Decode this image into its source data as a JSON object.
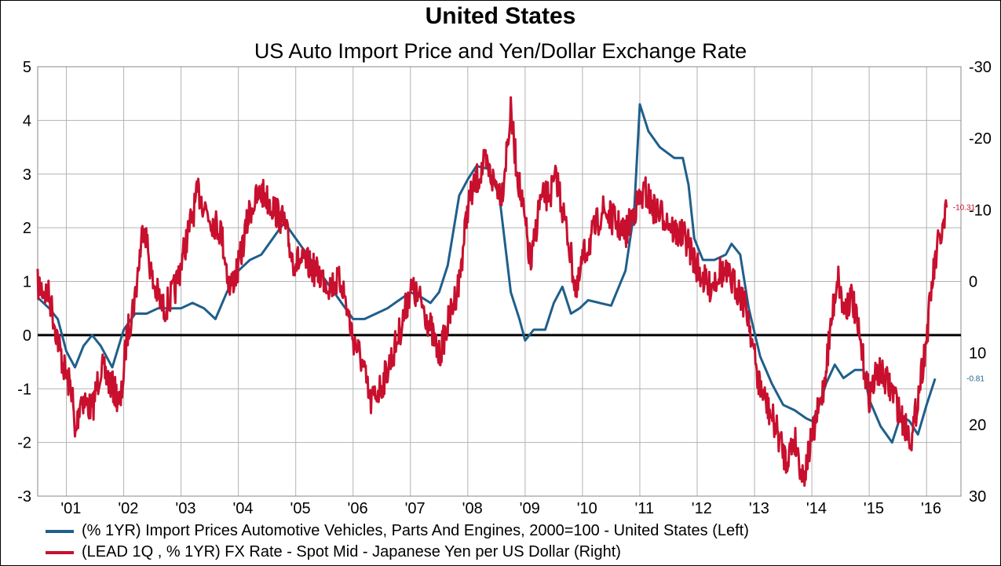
{
  "title": "United States",
  "subtitle": "US Auto Import Price and Yen/Dollar Exchange Rate",
  "chart_data": {
    "type": "line",
    "title": "United States",
    "subtitle": "US Auto Import Price and Yen/Dollar Exchange Rate",
    "x_tick_labels": [
      "'01",
      "'02",
      "'03",
      "'04",
      "'05",
      "'06",
      "'07",
      "'08",
      "'09",
      "'10",
      "'11",
      "'12",
      "'13",
      "'14",
      "'15",
      "'16"
    ],
    "xlim": [
      2000.5,
      2016.6
    ],
    "y_left": {
      "lim": [
        -3,
        5
      ],
      "ticks": [
        -3,
        -2,
        -1,
        0,
        1,
        2,
        3,
        4,
        5
      ]
    },
    "y_right": {
      "lim": [
        30,
        -30
      ],
      "inverted": true,
      "ticks": [
        30,
        20,
        10,
        0,
        -10,
        -20,
        -30
      ]
    },
    "grid": true,
    "zero_line": true,
    "legend_position": "bottom",
    "series": [
      {
        "name": "(% 1YR) Import Prices Automotive Vehicles, Parts And Engines, 2000=100 - United States  (Left)",
        "axis": "left",
        "color": "#1f5f8b",
        "end_label": "-0.81",
        "points": [
          [
            2000.5,
            0.7
          ],
          [
            2000.7,
            0.5
          ],
          [
            2000.85,
            0.3
          ],
          [
            2001.0,
            -0.3
          ],
          [
            2001.15,
            -0.6
          ],
          [
            2001.3,
            -0.2
          ],
          [
            2001.45,
            0.0
          ],
          [
            2001.6,
            -0.2
          ],
          [
            2001.8,
            -0.6
          ],
          [
            2002.0,
            0.1
          ],
          [
            2002.2,
            0.4
          ],
          [
            2002.4,
            0.4
          ],
          [
            2002.6,
            0.5
          ],
          [
            2002.8,
            0.5
          ],
          [
            2003.0,
            0.5
          ],
          [
            2003.2,
            0.6
          ],
          [
            2003.4,
            0.5
          ],
          [
            2003.6,
            0.3
          ],
          [
            2003.8,
            0.8
          ],
          [
            2004.0,
            1.2
          ],
          [
            2004.2,
            1.4
          ],
          [
            2004.4,
            1.5
          ],
          [
            2004.6,
            1.8
          ],
          [
            2004.8,
            2.1
          ],
          [
            2005.0,
            1.8
          ],
          [
            2005.2,
            1.5
          ],
          [
            2005.4,
            1.2
          ],
          [
            2005.6,
            0.9
          ],
          [
            2005.8,
            0.6
          ],
          [
            2006.0,
            0.3
          ],
          [
            2006.2,
            0.3
          ],
          [
            2006.4,
            0.4
          ],
          [
            2006.6,
            0.5
          ],
          [
            2006.8,
            0.65
          ],
          [
            2007.0,
            0.8
          ],
          [
            2007.2,
            0.7
          ],
          [
            2007.35,
            0.6
          ],
          [
            2007.5,
            0.8
          ],
          [
            2007.65,
            1.3
          ],
          [
            2007.85,
            2.6
          ],
          [
            2008.0,
            2.9
          ],
          [
            2008.15,
            3.15
          ],
          [
            2008.35,
            3.1
          ],
          [
            2008.55,
            2.6
          ],
          [
            2008.75,
            0.8
          ],
          [
            2008.9,
            0.3
          ],
          [
            2009.0,
            -0.1
          ],
          [
            2009.15,
            0.1
          ],
          [
            2009.35,
            0.1
          ],
          [
            2009.5,
            0.6
          ],
          [
            2009.65,
            0.9
          ],
          [
            2009.8,
            0.4
          ],
          [
            2009.95,
            0.5
          ],
          [
            2010.1,
            0.65
          ],
          [
            2010.3,
            0.6
          ],
          [
            2010.5,
            0.55
          ],
          [
            2010.75,
            1.2
          ],
          [
            2010.9,
            2.3
          ],
          [
            2011.0,
            4.3
          ],
          [
            2011.15,
            3.8
          ],
          [
            2011.35,
            3.5
          ],
          [
            2011.6,
            3.3
          ],
          [
            2011.75,
            3.3
          ],
          [
            2011.85,
            2.8
          ],
          [
            2011.95,
            1.8
          ],
          [
            2012.1,
            1.4
          ],
          [
            2012.3,
            1.4
          ],
          [
            2012.5,
            1.5
          ],
          [
            2012.6,
            1.7
          ],
          [
            2012.75,
            1.5
          ],
          [
            2012.9,
            0.5
          ],
          [
            2013.1,
            -0.4
          ],
          [
            2013.3,
            -0.9
          ],
          [
            2013.5,
            -1.3
          ],
          [
            2013.7,
            -1.4
          ],
          [
            2013.9,
            -1.55
          ],
          [
            2014.0,
            -1.6
          ],
          [
            2014.1,
            -1.4
          ],
          [
            2014.25,
            -0.9
          ],
          [
            2014.4,
            -0.55
          ],
          [
            2014.55,
            -0.8
          ],
          [
            2014.75,
            -0.65
          ],
          [
            2014.9,
            -0.65
          ],
          [
            2015.0,
            -1.2
          ],
          [
            2015.2,
            -1.7
          ],
          [
            2015.4,
            -2.0
          ],
          [
            2015.55,
            -1.5
          ],
          [
            2015.7,
            -1.6
          ],
          [
            2015.85,
            -1.85
          ],
          [
            2016.0,
            -1.3
          ],
          [
            2016.15,
            -0.81
          ]
        ]
      },
      {
        "name": "(LEAD 1Q , % 1YR) FX Rate - Spot Mid - Japanese Yen per US Dollar  (Right)",
        "axis": "right",
        "color": "#c8102e",
        "end_label": "-10.31",
        "points": [
          [
            2000.5,
            0.5
          ],
          [
            2000.7,
            2.0
          ],
          [
            2000.9,
            10.0
          ],
          [
            2001.0,
            13.5
          ],
          [
            2001.1,
            15.0
          ],
          [
            2001.15,
            22.0
          ],
          [
            2001.25,
            16.0
          ],
          [
            2001.45,
            18.0
          ],
          [
            2001.6,
            12.0
          ],
          [
            2001.75,
            14.0
          ],
          [
            2001.95,
            17.0
          ],
          [
            2002.05,
            8.0
          ],
          [
            2002.2,
            2.0
          ],
          [
            2002.35,
            -8.5
          ],
          [
            2002.5,
            0.0
          ],
          [
            2002.7,
            4.0
          ],
          [
            2002.9,
            1.0
          ],
          [
            2003.1,
            -6.0
          ],
          [
            2003.3,
            -12.5
          ],
          [
            2003.5,
            -9.0
          ],
          [
            2003.7,
            -7.0
          ],
          [
            2003.85,
            1.0
          ],
          [
            2004.0,
            -2.0
          ],
          [
            2004.2,
            -10.0
          ],
          [
            2004.4,
            -12.5
          ],
          [
            2004.6,
            -10.5
          ],
          [
            2004.8,
            -8.0
          ],
          [
            2004.95,
            -3.0
          ],
          [
            2005.2,
            -2.5
          ],
          [
            2005.4,
            -1.0
          ],
          [
            2005.6,
            0.5
          ],
          [
            2005.8,
            0.0
          ],
          [
            2006.0,
            8.0
          ],
          [
            2006.15,
            11.0
          ],
          [
            2006.3,
            17.0
          ],
          [
            2006.5,
            14.5
          ],
          [
            2006.7,
            10.0
          ],
          [
            2006.85,
            6.0
          ],
          [
            2007.0,
            1.0
          ],
          [
            2007.2,
            3.0
          ],
          [
            2007.35,
            6.5
          ],
          [
            2007.5,
            10.5
          ],
          [
            2007.65,
            6.0
          ],
          [
            2007.85,
            0.0
          ],
          [
            2008.0,
            -10.5
          ],
          [
            2008.15,
            -14.0
          ],
          [
            2008.3,
            -16.5
          ],
          [
            2008.45,
            -14.0
          ],
          [
            2008.6,
            -12.5
          ],
          [
            2008.75,
            -23.5
          ],
          [
            2008.85,
            -16.0
          ],
          [
            2009.0,
            -8.0
          ],
          [
            2009.1,
            -2.0
          ],
          [
            2009.25,
            -11.0
          ],
          [
            2009.45,
            -12.5
          ],
          [
            2009.55,
            -14.5
          ],
          [
            2009.75,
            -6.0
          ],
          [
            2009.9,
            2.0
          ],
          [
            2010.0,
            -3.0
          ],
          [
            2010.2,
            -7.0
          ],
          [
            2010.35,
            -10.0
          ],
          [
            2010.55,
            -8.5
          ],
          [
            2010.75,
            -6.5
          ],
          [
            2010.9,
            -10.0
          ],
          [
            2011.1,
            -12.5
          ],
          [
            2011.25,
            -10.0
          ],
          [
            2011.45,
            -9.0
          ],
          [
            2011.6,
            -7.0
          ],
          [
            2011.8,
            -6.0
          ],
          [
            2012.0,
            -2.0
          ],
          [
            2012.2,
            1.0
          ],
          [
            2012.4,
            -1.5
          ],
          [
            2012.55,
            -0.5
          ],
          [
            2012.75,
            1.5
          ],
          [
            2012.9,
            5.0
          ],
          [
            2013.05,
            13.5
          ],
          [
            2013.2,
            17.0
          ],
          [
            2013.4,
            21.0
          ],
          [
            2013.55,
            25.0
          ],
          [
            2013.7,
            22.0
          ],
          [
            2013.85,
            27.5
          ],
          [
            2014.0,
            22.0
          ],
          [
            2014.2,
            15.0
          ],
          [
            2014.35,
            5.0
          ],
          [
            2014.45,
            -1.0
          ],
          [
            2014.55,
            4.0
          ],
          [
            2014.7,
            2.0
          ],
          [
            2014.85,
            9.0
          ],
          [
            2015.0,
            16.0
          ],
          [
            2015.15,
            12.5
          ],
          [
            2015.3,
            14.0
          ],
          [
            2015.45,
            16.0
          ],
          [
            2015.55,
            19.0
          ],
          [
            2015.75,
            22.0
          ],
          [
            2015.85,
            16.0
          ],
          [
            2016.0,
            8.0
          ],
          [
            2016.1,
            0.0
          ],
          [
            2016.2,
            -5.0
          ],
          [
            2016.3,
            -7.5
          ],
          [
            2016.35,
            -10.31
          ]
        ]
      }
    ]
  }
}
